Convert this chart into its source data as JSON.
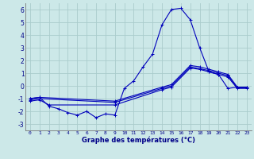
{
  "xlabel": "Graphe des températures (°C)",
  "background_color": "#cce8e8",
  "grid_color": "#aacccc",
  "line_color": "#0000bb",
  "xlim": [
    -0.5,
    23.5
  ],
  "ylim": [
    -3.5,
    6.5
  ],
  "yticks": [
    -3,
    -2,
    -1,
    0,
    1,
    2,
    3,
    4,
    5,
    6
  ],
  "xticks": [
    0,
    1,
    2,
    3,
    4,
    5,
    6,
    7,
    8,
    9,
    10,
    11,
    12,
    13,
    14,
    15,
    16,
    17,
    18,
    19,
    20,
    21,
    22,
    23
  ],
  "line1_x": [
    0,
    1,
    2,
    3,
    4,
    5,
    6,
    7,
    8,
    9,
    10,
    11,
    12,
    13,
    14,
    15,
    16,
    17,
    18,
    19,
    20,
    21,
    22,
    23
  ],
  "line1_y": [
    -1.0,
    -0.9,
    -1.6,
    -1.8,
    -2.1,
    -2.3,
    -2.0,
    -2.5,
    -2.2,
    -2.3,
    -0.2,
    0.4,
    1.5,
    2.5,
    4.8,
    6.0,
    6.1,
    5.2,
    3.0,
    1.1,
    0.9,
    -0.2,
    -0.1,
    -0.1
  ],
  "line2_x": [
    0,
    1,
    9,
    14,
    15,
    17,
    18,
    19,
    20,
    21,
    22,
    23
  ],
  "line2_y": [
    -1.0,
    -0.9,
    -1.2,
    -0.1,
    0.1,
    1.6,
    1.5,
    1.3,
    1.1,
    0.9,
    -0.1,
    -0.1
  ],
  "line3_x": [
    0,
    1,
    9,
    14,
    15,
    17,
    18,
    19,
    20,
    21,
    22,
    23
  ],
  "line3_y": [
    -1.1,
    -1.0,
    -1.3,
    -0.2,
    0.0,
    1.5,
    1.35,
    1.2,
    1.0,
    0.8,
    -0.15,
    -0.15
  ],
  "line4_x": [
    0,
    1,
    2,
    9,
    14,
    15,
    17,
    18,
    19,
    20,
    21,
    22,
    23
  ],
  "line4_y": [
    -1.2,
    -1.1,
    -1.5,
    -1.5,
    -0.3,
    -0.1,
    1.4,
    1.3,
    1.1,
    0.9,
    0.7,
    -0.2,
    -0.2
  ]
}
